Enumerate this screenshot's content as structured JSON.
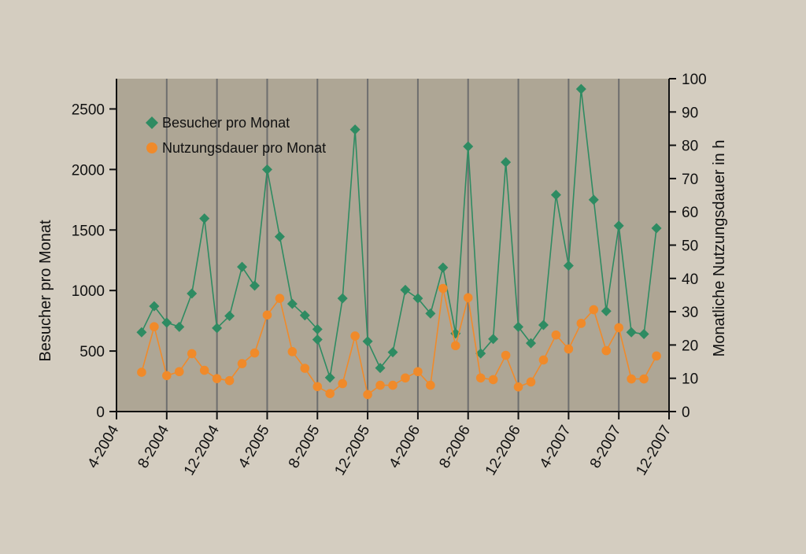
{
  "chart_data": {
    "type": "line",
    "title": "",
    "xlabel": "",
    "ylabel": "Besucher pro Monat",
    "y2label": "Monatliche Nutzungsdauer in h",
    "xlim": [
      "2004-04",
      "2007-12"
    ],
    "ylim": [
      0,
      2750
    ],
    "y2lim": [
      0,
      100
    ],
    "x_ticks": [
      "4-2004",
      "8-2004",
      "12-2004",
      "4-2005",
      "8-2005",
      "12-2005",
      "4-2006",
      "8-2006",
      "12-2006",
      "4-2007",
      "8-2007",
      "12-2007"
    ],
    "y_ticks": [
      "0",
      "500",
      "1000",
      "1500",
      "2000",
      "2500"
    ],
    "y2_ticks": [
      "0",
      "10",
      "20",
      "30",
      "40",
      "50",
      "60",
      "70",
      "80",
      "90",
      "100"
    ],
    "grid": "vertical",
    "legend_position": "top-left",
    "colors": {
      "background": "#d4cdc0",
      "plot_area": "#aea695",
      "visitors": "#2e8b62",
      "usage": "#f08a2a",
      "gridline": "#6e6e6e"
    },
    "series": [
      {
        "name": "Besucher pro Monat",
        "axis": "left",
        "marker": "diamond",
        "points": [
          [
            "2004-06",
            655
          ],
          [
            "2004-07",
            870
          ],
          [
            "2004-08",
            735
          ],
          [
            "2004-09",
            700
          ],
          [
            "2004-10",
            975
          ],
          [
            "2004-11",
            1595
          ],
          [
            "2004-12",
            690
          ],
          [
            "2005-01",
            790
          ],
          [
            "2005-02",
            1195
          ],
          [
            "2005-03",
            1040
          ],
          [
            "2005-04",
            2000
          ],
          [
            "2005-05",
            1445
          ],
          [
            "2005-06",
            890
          ],
          [
            "2005-07",
            795
          ],
          [
            "2005-08",
            680
          ],
          [
            "2005-08",
            595
          ],
          [
            "2005-09",
            280
          ],
          [
            "2005-10",
            935
          ],
          [
            "2005-11",
            2330
          ],
          [
            "2005-12",
            580
          ],
          [
            "2006-01",
            360
          ],
          [
            "2006-02",
            490
          ],
          [
            "2006-03",
            1005
          ],
          [
            "2006-04",
            935
          ],
          [
            "2006-05",
            810
          ],
          [
            "2006-06",
            1190
          ],
          [
            "2006-07",
            645
          ],
          [
            "2006-08",
            2190
          ],
          [
            "2006-09",
            480
          ],
          [
            "2006-10",
            600
          ],
          [
            "2006-11",
            2060
          ],
          [
            "2006-12",
            700
          ],
          [
            "2007-01",
            565
          ],
          [
            "2007-02",
            715
          ],
          [
            "2007-03",
            1790
          ],
          [
            "2007-04",
            1205
          ],
          [
            "2007-05",
            2665
          ],
          [
            "2007-06",
            1750
          ],
          [
            "2007-07",
            830
          ],
          [
            "2007-08",
            1535
          ],
          [
            "2007-09",
            655
          ],
          [
            "2007-10",
            640
          ],
          [
            "2007-11",
            1515
          ]
        ]
      },
      {
        "name": "Nutzungsdauer pro Monat",
        "axis": "right",
        "marker": "circle",
        "points": [
          [
            "2004-06",
            11.8
          ],
          [
            "2004-07",
            25.5
          ],
          [
            "2004-08",
            10.8
          ],
          [
            "2004-09",
            12.0
          ],
          [
            "2004-10",
            17.4
          ],
          [
            "2004-11",
            12.4
          ],
          [
            "2004-12",
            9.9
          ],
          [
            "2005-01",
            9.3
          ],
          [
            "2005-02",
            14.4
          ],
          [
            "2005-03",
            17.6
          ],
          [
            "2005-04",
            29.0
          ],
          [
            "2005-05",
            34.0
          ],
          [
            "2005-06",
            18.0
          ],
          [
            "2005-07",
            13.0
          ],
          [
            "2005-08",
            7.5
          ],
          [
            "2005-09",
            5.4
          ],
          [
            "2005-10",
            8.4
          ],
          [
            "2005-11",
            22.7
          ],
          [
            "2005-12",
            5.1
          ],
          [
            "2006-01",
            7.9
          ],
          [
            "2006-02",
            7.9
          ],
          [
            "2006-03",
            10.1
          ],
          [
            "2006-04",
            12.0
          ],
          [
            "2006-05",
            7.9
          ],
          [
            "2006-06",
            37.0
          ],
          [
            "2006-07",
            19.8
          ],
          [
            "2006-08",
            34.2
          ],
          [
            "2006-09",
            10.1
          ],
          [
            "2006-10",
            9.6
          ],
          [
            "2006-11",
            16.9
          ],
          [
            "2006-12",
            7.4
          ],
          [
            "2007-01",
            8.9
          ],
          [
            "2007-02",
            15.5
          ],
          [
            "2007-03",
            23.0
          ],
          [
            "2007-04",
            18.8
          ],
          [
            "2007-05",
            26.5
          ],
          [
            "2007-06",
            30.6
          ],
          [
            "2007-07",
            18.3
          ],
          [
            "2007-08",
            25.2
          ],
          [
            "2007-09",
            9.8
          ],
          [
            "2007-10",
            9.8
          ],
          [
            "2007-11",
            16.7
          ]
        ]
      }
    ]
  }
}
